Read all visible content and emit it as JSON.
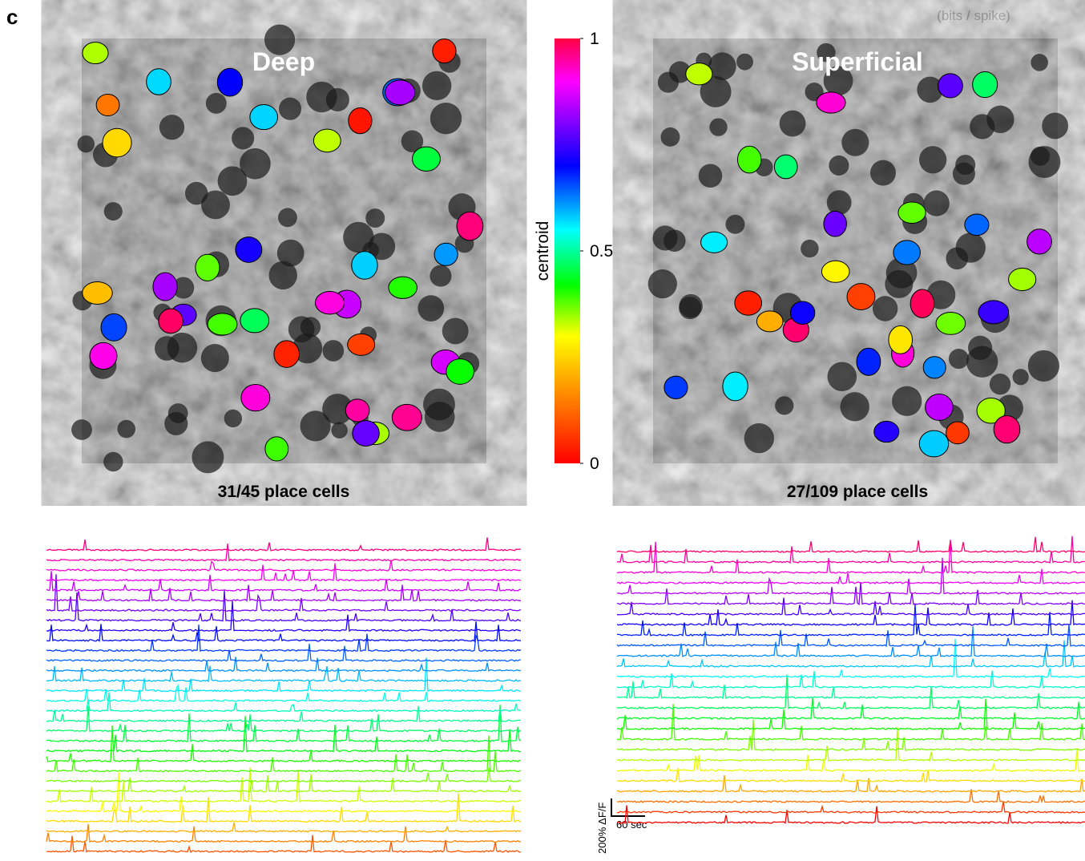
{
  "panel_label": "c",
  "header_note": "(bits / spike)",
  "images": [
    {
      "title": "Deep",
      "caption": "31/45 place cells"
    },
    {
      "title": "Superficial",
      "caption": "27/109 place cells"
    }
  ],
  "colorbar": {
    "label": "centroid",
    "lim": [
      0,
      1
    ],
    "ticks": [
      0,
      0.5,
      1
    ]
  },
  "scale_bar": {
    "vertical": "200% ΔF/F",
    "horizontal": "60 sec"
  }
}
